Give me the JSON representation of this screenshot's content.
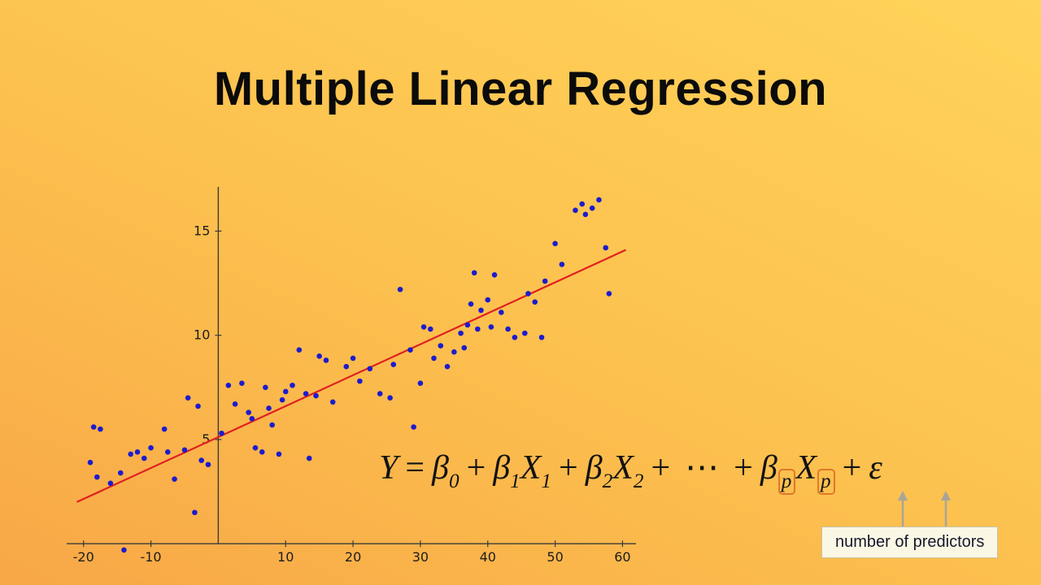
{
  "slide": {
    "title": "Multiple Linear Regression"
  },
  "theme": {
    "bg_top": "#ffd45a",
    "bg_mid": "#fcc04e",
    "bg_bottom": "#f8a747",
    "title_color": "#0b0b0b",
    "highlight": "#e0782b",
    "note_bg": "#fbf7e5",
    "note_border": "#c9c2a6"
  },
  "formula": {
    "Y": "Y",
    "eq": "=",
    "plus": "+",
    "beta": "β",
    "X": "X",
    "sub0": "0",
    "sub1": "1",
    "sub2": "2",
    "subp": "p",
    "cdots": "⋯",
    "epsilon": "ε"
  },
  "annotation": {
    "label": "number of predictors",
    "arrow_color": "#a8a59a"
  },
  "chart_data": {
    "type": "scatter",
    "title": "",
    "xlabel": "",
    "ylabel": "",
    "grid": false,
    "legend": null,
    "xlim": [
      -22.5,
      62
    ],
    "ylim": [
      -1.2,
      17.2
    ],
    "xticks": [
      -20,
      -10,
      10,
      20,
      30,
      40,
      50,
      60
    ],
    "yticks": [
      5,
      10,
      15
    ],
    "axis_color": "#3a3a3a",
    "point_color": "#1c1ccd",
    "line": {
      "x1": -21,
      "y1": 2.0,
      "x2": 60.5,
      "y2": 14.1,
      "color": "#e02020"
    },
    "points": [
      [
        -18.5,
        5.6
      ],
      [
        -17.5,
        5.5
      ],
      [
        -19,
        3.9
      ],
      [
        -18,
        3.2
      ],
      [
        -16,
        2.9
      ],
      [
        -14.5,
        3.4
      ],
      [
        -13,
        4.3
      ],
      [
        -12,
        4.4
      ],
      [
        -11,
        4.1
      ],
      [
        -10,
        4.6
      ],
      [
        -14,
        -0.3
      ],
      [
        -8,
        5.5
      ],
      [
        -7.5,
        4.4
      ],
      [
        -6.5,
        3.1
      ],
      [
        -5,
        4.5
      ],
      [
        -4.5,
        7.0
      ],
      [
        -3,
        6.6
      ],
      [
        -2.5,
        4.0
      ],
      [
        -1.5,
        3.8
      ],
      [
        -3.5,
        1.5
      ],
      [
        0.5,
        5.3
      ],
      [
        1.5,
        7.6
      ],
      [
        2.5,
        6.7
      ],
      [
        3.5,
        7.7
      ],
      [
        4.5,
        6.3
      ],
      [
        5,
        6.0
      ],
      [
        5.5,
        4.6
      ],
      [
        6.5,
        4.4
      ],
      [
        7,
        7.5
      ],
      [
        7.5,
        6.5
      ],
      [
        8,
        5.7
      ],
      [
        9,
        4.3
      ],
      [
        9.5,
        6.9
      ],
      [
        10,
        7.3
      ],
      [
        11,
        7.6
      ],
      [
        12,
        9.3
      ],
      [
        13,
        7.2
      ],
      [
        13.5,
        4.1
      ],
      [
        14.5,
        7.1
      ],
      [
        15,
        9.0
      ],
      [
        16,
        8.8
      ],
      [
        17,
        6.8
      ],
      [
        19,
        8.5
      ],
      [
        20,
        8.9
      ],
      [
        21,
        7.8
      ],
      [
        22.5,
        8.4
      ],
      [
        24,
        7.2
      ],
      [
        25.5,
        7.0
      ],
      [
        26,
        8.6
      ],
      [
        27,
        12.2
      ],
      [
        28.5,
        9.3
      ],
      [
        29,
        5.6
      ],
      [
        30,
        7.7
      ],
      [
        30.5,
        10.4
      ],
      [
        31.5,
        10.3
      ],
      [
        32,
        8.9
      ],
      [
        33,
        9.5
      ],
      [
        34,
        8.5
      ],
      [
        35,
        9.2
      ],
      [
        36,
        10.1
      ],
      [
        36.5,
        9.4
      ],
      [
        37,
        10.5
      ],
      [
        37.5,
        11.5
      ],
      [
        38,
        13.0
      ],
      [
        38.5,
        10.3
      ],
      [
        39,
        11.2
      ],
      [
        40,
        11.7
      ],
      [
        40.5,
        10.4
      ],
      [
        41,
        12.9
      ],
      [
        42,
        11.1
      ],
      [
        43,
        10.3
      ],
      [
        44,
        9.9
      ],
      [
        45.5,
        10.1
      ],
      [
        46,
        12.0
      ],
      [
        47,
        11.6
      ],
      [
        48,
        9.9
      ],
      [
        48.5,
        12.6
      ],
      [
        50,
        14.4
      ],
      [
        51,
        13.4
      ],
      [
        53,
        16.0
      ],
      [
        54,
        16.3
      ],
      [
        54.5,
        15.8
      ],
      [
        55.5,
        16.1
      ],
      [
        56.5,
        16.5
      ],
      [
        57.5,
        14.2
      ],
      [
        58,
        12.0
      ]
    ]
  }
}
